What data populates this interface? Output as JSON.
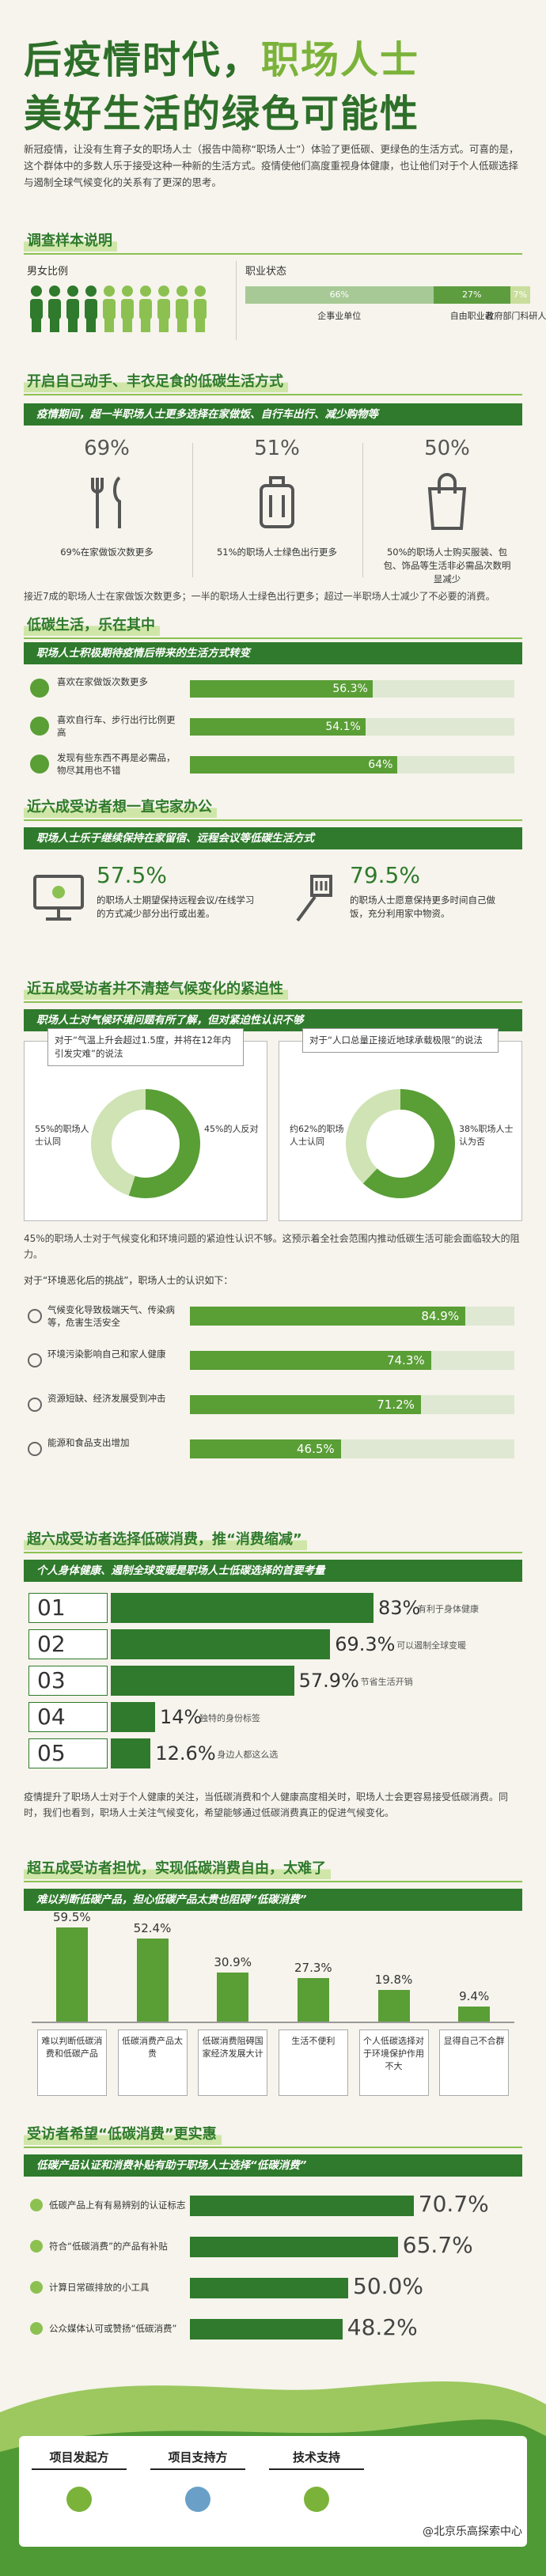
{
  "title_line1": [
    "后疫情时代，",
    "职场人士"
  ],
  "title_line2": "美好生活的绿色可能性",
  "intro": "新冠疫情，让没有生育子女的职场人士（报告中简称“职场人士”）体验了更低碳、更绿色的生活方式。可喜的是，这个群体中的多数人乐于接受这种一种新的生活方式。疫情使他们高度重视身体健康，也让他们对于个人低碳选择与遏制全球气候变化的关系有了更深的思考。",
  "sample": {
    "heading": "调查样本说明",
    "gender_label": "男女比例",
    "job_label": "职业状态",
    "jobs": [
      {
        "name": "企事业单位",
        "value": 66,
        "label": "66%"
      },
      {
        "name": "自由职业者",
        "value": 27,
        "label": "27%"
      },
      {
        "name": "政府部门科研人员",
        "value": 7,
        "label": "7%"
      }
    ]
  },
  "diy": {
    "heading": "开启自己动手、丰衣足食的低碳生活方式",
    "sub": "疫情期间，超一半职场人士更多选择在家做饭、自行车出行、减少购物等",
    "items": [
      {
        "value": 69,
        "label": "69%",
        "caption": "69%在家做饭次数更多"
      },
      {
        "value": 51,
        "label": "51%",
        "caption": "51%的职场人士绿色出行更多"
      },
      {
        "value": 50,
        "label": "50%",
        "caption": "50%的职场人士购买服装、包包、饰品等生活非必需品次数明显减少"
      }
    ],
    "summary": "接近7成的职场人士在家做饭次数更多；一半的职场人士绿色出行更多；超过一半职场人士减少了不必要的消费。"
  },
  "enjoy": {
    "heading": "低碳生活，乐在其中",
    "sub": "职场人士积极期待疫情后带来的生活方式转变",
    "items": [
      {
        "name": "喜欢在家做饭次数更多",
        "value": 56.3,
        "label": "56.3%"
      },
      {
        "name": "喜欢自行车、步行出行比例更高",
        "value": 54.1,
        "label": "54.1%"
      },
      {
        "name": "发现有些东西不再是必需品，物尽其用也不错",
        "value": 64,
        "label": "64%"
      }
    ]
  },
  "wfh": {
    "heading": "近六成受访者想一直宅家办公",
    "sub": "职场人士乐于继续保持在家留宿、远程会议等低碳生活方式",
    "items": [
      {
        "value": 57.5,
        "label": "57.5%",
        "caption": "的职场人士期望保持远程会议/在线学习的方式减少部分出行或出差。"
      },
      {
        "value": 79.5,
        "label": "79.5%",
        "caption": "的职场人士愿意保持更多时间自己做饭，充分利用家中物资。"
      }
    ]
  },
  "climate": {
    "heading": "近五成受访者并不清楚气候变化的紧迫性",
    "sub": "职场人士对气候环境问题有所了解，但对紧迫性认识不够",
    "polls": [
      {
        "statement": "对于“气温上升会超过1.5度，并将在12年内引发灾难”的说法",
        "agree": {
          "value": 55,
          "label": "55%的职场人士认同"
        },
        "disagree": {
          "value": 45,
          "label": "45%的人反对"
        }
      },
      {
        "statement": "对于“人口总量正接近地球承载极限”的说法",
        "agree": {
          "value": 62,
          "label": "约62%的职场人士认同"
        },
        "disagree": {
          "value": 38,
          "label": "38%职场人士认为否"
        }
      }
    ],
    "note": "45%的职场人士对于气候变化和环境问题的紧迫性认识不够。这预示着全社会范围内推动低碳生活可能会面临较大的阻力。",
    "challenge_intro": "对于“环境恶化后的挑战”，职场人士的认识如下：",
    "challenges": [
      {
        "name": "气候变化导致极端天气、传染病等，危害生活安全",
        "value": 84.9,
        "label": "84.9%"
      },
      {
        "name": "环境污染影响自己和家人健康",
        "value": 74.3,
        "label": "74.3%"
      },
      {
        "name": "资源短缺、经济发展受到冲击",
        "value": 71.2,
        "label": "71.2%"
      },
      {
        "name": "能源和食品支出增加",
        "value": 46.5,
        "label": "46.5%"
      }
    ]
  },
  "consume": {
    "heading": "超六成受访者选择低碳消费，推“消费缩减”",
    "sub": "个人身体健康、遏制全球变暖是职场人士低碳选择的首要考量",
    "items": [
      {
        "rank": "01",
        "value": 83,
        "label": "83%",
        "caption": "有利于身体健康"
      },
      {
        "rank": "02",
        "value": 69.3,
        "label": "69.3%",
        "caption": "可以遏制全球变暖"
      },
      {
        "rank": "03",
        "value": 57.9,
        "label": "57.9%",
        "caption": "节省生活开销"
      },
      {
        "rank": "04",
        "value": 14,
        "label": "14%",
        "caption": "独特的身份标签"
      },
      {
        "rank": "05",
        "value": 12.6,
        "label": "12.6%",
        "caption": "身边人都这么选"
      }
    ],
    "note": "疫情提升了职场人士对于个人健康的关注，当低碳消费和个人健康高度相关时，职场人士会更容易接受低碳消费。同时，我们也看到，职场人士关注气候变化，希望能够通过低碳消费真正的促进气候变化。"
  },
  "barrier": {
    "heading": "超五成受访者担忧，实现低碳消费自由，太难了",
    "sub": "难以判断低碳产品，担心低碳产品太贵也阻碍“低碳消费”",
    "items": [
      {
        "name": "难以判断低碳消费和低碳产品",
        "value": 59.5,
        "label": "59.5%"
      },
      {
        "name": "低碳消费产品太贵",
        "value": 52.4,
        "label": "52.4%"
      },
      {
        "name": "低碳消费阻碍国家经济发展大计",
        "value": 30.9,
        "label": "30.9%"
      },
      {
        "name": "生活不便利",
        "value": 27.3,
        "label": "27.3%"
      },
      {
        "name": "个人低碳选择对于环境保护作用不大",
        "value": 19.8,
        "label": "19.8%"
      },
      {
        "name": "显得自己不合群",
        "value": 9.4,
        "label": "9.4%"
      }
    ]
  },
  "hope": {
    "heading": "受访者希望“低碳消费”更实惠",
    "sub": "低碳产品认证和消费补贴有助于职场人士选择“低碳消费”",
    "items": [
      {
        "name": "低碳产品上有有易辨别的认证标志",
        "value": 70.7,
        "label": "70.7%"
      },
      {
        "name": "符合“低碳消费”的产品有补贴",
        "value": 65.7,
        "label": "65.7%"
      },
      {
        "name": "计算日常碳排放的小工具",
        "value": 50.0,
        "label": "50.0%"
      },
      {
        "name": "公众媒体认可或赞扬“低碳消费”",
        "value": 48.2,
        "label": "48.2%"
      }
    ]
  },
  "footer": {
    "roles": [
      "项目发起方",
      "项目支持方",
      "技术支持"
    ],
    "watermark": "@北京乐高探索中心"
  }
}
